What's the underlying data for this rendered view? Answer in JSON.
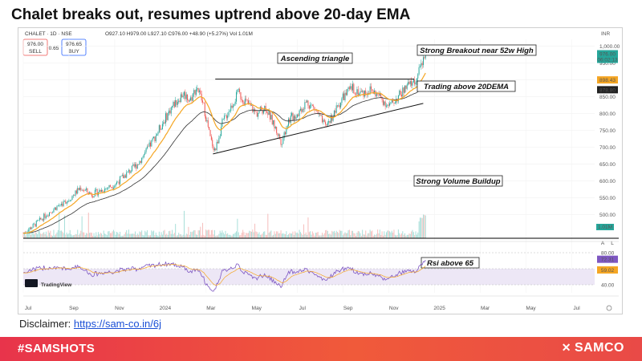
{
  "headline": "Chalet breaks out, resumes uptrend above 20-day EMA",
  "disclaimer": {
    "label": "Disclaimer:",
    "link": "https://sam-co.in/6j"
  },
  "footer": {
    "hashtag": "#SAMSHOTS",
    "brand": "SAMCO",
    "brand_mark": "✕"
  },
  "colors": {
    "candle_up": "#26a69a",
    "candle_down": "#ef5350",
    "ema20": "#f5a623",
    "ema50": "#333333",
    "rsi": "#7e57c2",
    "rsi_band": "#ede7f6",
    "footer": "#e8344b"
  },
  "chart_data": {
    "type": "candlestick",
    "symbol_header": "CHALET · 1D · NSE",
    "ohlc_text": "O927.10 H979.00 L927.10 C976.00 +48.90 (+5.27%) Vol 1.01M",
    "sell_price": "976.00",
    "sell_label": "SELL",
    "buy_price": "976.65",
    "buy_label": "BUY",
    "spread": "0.65",
    "currency": "INR",
    "y_ticks": [
      1000,
      950,
      900,
      850,
      800,
      750,
      700,
      650,
      600,
      550,
      500
    ],
    "y_tick_labels": [
      "1,000.00",
      "950.00",
      "900.00",
      "850.00",
      "800.00",
      "750.00",
      "700.00",
      "650.00",
      "600.00",
      "550.00",
      "500.00"
    ],
    "ylim": [
      430,
      1020
    ],
    "price_tags": [
      {
        "label": "976.00",
        "value": 976.0,
        "sub": "06:02:13",
        "color": "#26a69a"
      },
      {
        "label": "898.43",
        "value": 898.43,
        "color": "#f5a623"
      },
      {
        "label": "878.80",
        "value": 878.8,
        "color": "#222222"
      }
    ],
    "volume_tag": "1.01M",
    "x_labels": [
      "Jul",
      "Sep",
      "Nov",
      "2024",
      "Mar",
      "May",
      "Jul",
      "Sep",
      "Nov",
      "2025",
      "Mar",
      "May",
      "Jul"
    ],
    "x_label_pos": [
      0,
      2,
      4,
      6,
      8,
      10,
      12,
      14,
      16,
      18,
      20,
      22,
      24
    ],
    "months": 25,
    "data_end_month": 17.6,
    "price_path": [
      [
        0,
        445
      ],
      [
        0.5,
        470
      ],
      [
        1,
        500
      ],
      [
        1.5,
        525
      ],
      [
        2,
        545
      ],
      [
        2.5,
        580
      ],
      [
        3,
        560
      ],
      [
        3.5,
        575
      ],
      [
        4,
        590
      ],
      [
        4.5,
        620
      ],
      [
        5,
        650
      ],
      [
        5.5,
        700
      ],
      [
        6,
        760
      ],
      [
        6.5,
        820
      ],
      [
        7,
        860
      ],
      [
        7.3,
        840
      ],
      [
        7.6,
        880
      ],
      [
        7.9,
        820
      ],
      [
        8.2,
        720
      ],
      [
        8.4,
        690
      ],
      [
        8.7,
        770
      ],
      [
        9,
        810
      ],
      [
        9.4,
        860
      ],
      [
        9.8,
        830
      ],
      [
        10.2,
        800
      ],
      [
        10.6,
        820
      ],
      [
        11,
        760
      ],
      [
        11.3,
        715
      ],
      [
        11.6,
        780
      ],
      [
        12,
        800
      ],
      [
        12.4,
        835
      ],
      [
        12.8,
        810
      ],
      [
        13.2,
        760
      ],
      [
        13.6,
        800
      ],
      [
        14,
        850
      ],
      [
        14.4,
        875
      ],
      [
        14.8,
        860
      ],
      [
        15.2,
        870
      ],
      [
        15.6,
        850
      ],
      [
        16,
        820
      ],
      [
        16.4,
        850
      ],
      [
        16.8,
        880
      ],
      [
        17.2,
        900
      ],
      [
        17.6,
        976
      ]
    ],
    "volume_scale": [
      "small",
      "spikes at breakout"
    ],
    "rsi": {
      "levels": [
        80,
        60,
        40
      ],
      "level_labels": [
        "80.00",
        "60.00",
        "40.00"
      ],
      "band": [
        40,
        60
      ],
      "current_tags": [
        {
          "label": "72.31",
          "value": 72.31,
          "color": "#7e57c2"
        },
        {
          "label": "59.02",
          "value": 59.02,
          "color": "#f5a623"
        }
      ]
    },
    "annotations": [
      {
        "text": "Ascending triangle"
      },
      {
        "text": "Strong Breakout near 52w High"
      },
      {
        "text": "Trading above 20DEMA"
      },
      {
        "text": "Strong Volume Buildup"
      },
      {
        "text": "Rsi above 65"
      }
    ],
    "trendlines": [
      {
        "name": "resistance",
        "from": [
          8.4,
          902
        ],
        "to": [
          17.1,
          902
        ]
      },
      {
        "name": "support",
        "from": [
          8.3,
          680
        ],
        "to": [
          17.5,
          830
        ]
      }
    ],
    "tradingview": "TradingView",
    "axis_corner": [
      "A",
      "L"
    ]
  }
}
